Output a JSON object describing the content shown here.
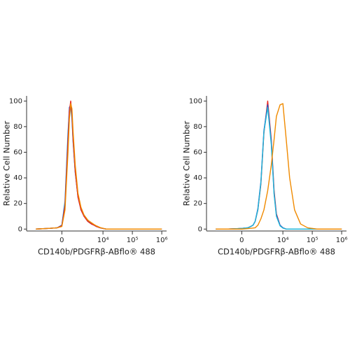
{
  "chart_data": [
    {
      "type": "line",
      "xscale": "asinh",
      "x_label": "CD140b/PDGFRβ-ABflo® 488",
      "y_label": "Relative Cell Number",
      "xlim": [
        -6300,
        1460000
      ],
      "ylim": [
        -1.5,
        104
      ],
      "xticks": [
        0,
        {
          "value": 10000,
          "label": "10⁴"
        },
        {
          "value": 100000,
          "label": "10⁵"
        },
        {
          "value": 1000000,
          "label": "10⁶"
        }
      ],
      "yticks": [
        0,
        20,
        40,
        60,
        80,
        100
      ],
      "x": [
        -3000,
        -1000,
        -300,
        0,
        200,
        400,
        500,
        600,
        700,
        800,
        1000,
        1300,
        1700,
        2200,
        3000,
        4000,
        5000,
        6000,
        8000,
        10000,
        13000,
        17000,
        25000,
        40000,
        70000,
        150000,
        400000,
        1000000
      ],
      "series": [
        {
          "color": "#1fb6d8",
          "values": [
            0,
            0.5,
            1,
            3,
            22,
            75,
            93,
            96,
            86,
            68,
            44,
            26,
            16,
            11,
            7,
            4.5,
            3,
            2,
            1,
            0.5,
            0,
            0,
            0,
            0,
            0,
            0,
            0,
            0
          ]
        },
        {
          "color": "#2a4fd0",
          "values": [
            0,
            0.5,
            1,
            3,
            20,
            72,
            95,
            97,
            88,
            69,
            45,
            25,
            15,
            10,
            6,
            4,
            3,
            2,
            1,
            0.5,
            0,
            0,
            0,
            0,
            0,
            0,
            0,
            0
          ]
        },
        {
          "color": "#e8251f",
          "values": [
            0,
            0.5,
            1,
            2.5,
            18,
            68,
            92,
            100,
            90,
            70,
            45,
            25,
            15,
            10,
            6,
            4,
            3,
            2,
            1,
            0.5,
            0,
            0,
            0,
            0,
            0,
            0,
            0,
            0
          ]
        },
        {
          "color": "#f08a00",
          "values": [
            0,
            0.5,
            1,
            2,
            15,
            60,
            86,
            98,
            94,
            76,
            50,
            28,
            17,
            11,
            7,
            5,
            3.5,
            2.5,
            1.2,
            0.6,
            0,
            0,
            0,
            0,
            0,
            0,
            0,
            0
          ]
        }
      ]
    },
    {
      "type": "line",
      "xscale": "asinh",
      "x_label": "CD140b/PDGFRβ-ABflo® 488",
      "y_label": "Relative Cell Number",
      "xlim": [
        -6300,
        1460000
      ],
      "ylim": [
        -1.5,
        104
      ],
      "xticks": [
        0,
        {
          "value": 10000,
          "label": "10⁴"
        },
        {
          "value": 100000,
          "label": "10⁵"
        },
        {
          "value": 1000000,
          "label": "10⁶"
        }
      ],
      "yticks": [
        0,
        20,
        40,
        60,
        80,
        100
      ],
      "x": [
        -3000,
        -1000,
        -300,
        0,
        200,
        400,
        600,
        800,
        1000,
        1300,
        1700,
        2200,
        3000,
        4000,
        5000,
        6000,
        8000,
        10000,
        13000,
        17000,
        25000,
        40000,
        70000,
        150000,
        400000,
        1000000
      ],
      "series": [
        {
          "color": "#e8251f",
          "values": [
            0,
            0,
            0.3,
            0.5,
            0.8,
            1,
            2,
            3,
            6,
            15,
            35,
            75,
            100,
            70,
            30,
            12,
            3,
            1,
            0,
            0,
            0,
            0,
            0,
            0,
            0,
            0
          ]
        },
        {
          "color": "#2a4fd0",
          "values": [
            0,
            0,
            0.3,
            0.5,
            0.8,
            1,
            2,
            3,
            6,
            16,
            37,
            77,
            97,
            68,
            28,
            11,
            3,
            1,
            0,
            0,
            0,
            0,
            0,
            0,
            0,
            0
          ]
        },
        {
          "color": "#1fb6d8",
          "values": [
            0,
            0,
            0.3,
            0.5,
            0.8,
            1,
            2,
            3,
            6,
            15,
            36,
            76,
            95,
            66,
            27,
            10,
            2.5,
            0.8,
            0,
            0,
            0,
            0,
            0,
            0,
            0,
            0
          ]
        },
        {
          "color": "#f08a00",
          "values": [
            0,
            0,
            0,
            0,
            0.2,
            0.4,
            0.6,
            0.8,
            1,
            3,
            8,
            15,
            30,
            50,
            70,
            88,
            97,
            98,
            70,
            40,
            15,
            4,
            1,
            0,
            0,
            0
          ]
        }
      ]
    }
  ]
}
